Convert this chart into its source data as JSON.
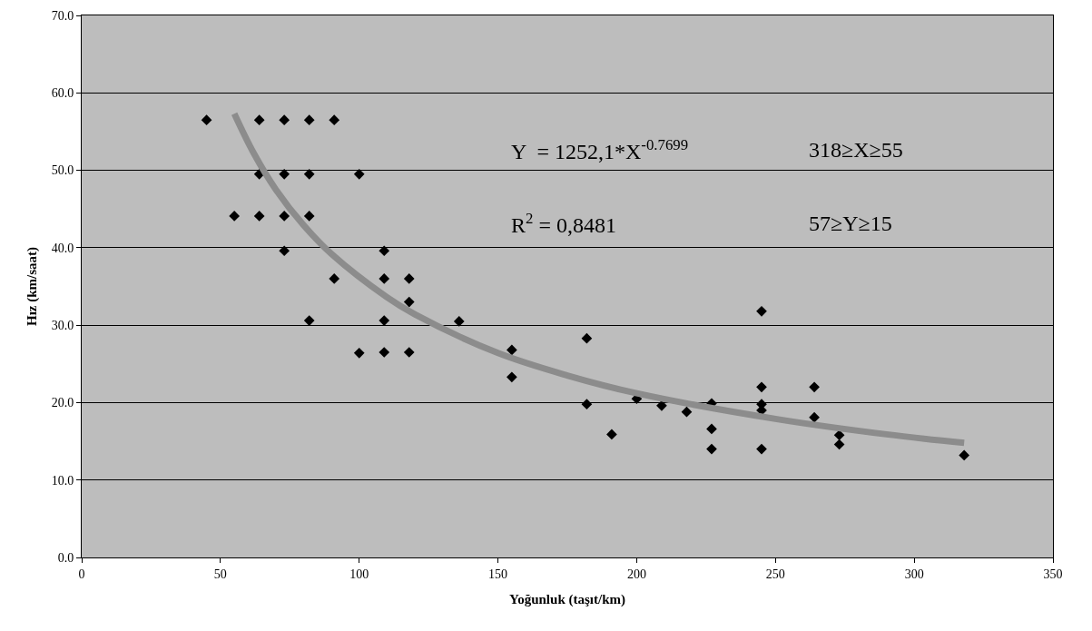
{
  "chart_data": {
    "type": "scatter",
    "xlabel": "Yoğunluk (taşıt/km)",
    "ylabel": "Hız (km/saat)",
    "xlim": [
      0,
      350
    ],
    "xticks": [
      0,
      50,
      100,
      150,
      200,
      250,
      300,
      350
    ],
    "ylim": [
      0,
      70
    ],
    "yticks": [
      {
        "value": 0,
        "label": "0.0"
      },
      {
        "value": 10,
        "label": "10.0"
      },
      {
        "value": 20,
        "label": "20.0"
      },
      {
        "value": 30,
        "label": "30.0"
      },
      {
        "value": 40,
        "label": "40.0"
      },
      {
        "value": 50,
        "label": "50.0"
      },
      {
        "value": 60,
        "label": "60.0"
      },
      {
        "value": 70,
        "label": "70.0"
      }
    ],
    "grid": "y",
    "series": [
      {
        "marker": "diamond",
        "color": "#000000",
        "x": [
          45,
          64,
          73,
          82,
          91,
          64,
          73,
          82,
          100,
          55,
          64,
          73,
          82,
          73,
          109,
          91,
          109,
          118,
          118,
          82,
          109,
          136,
          100,
          109,
          118,
          182,
          155,
          155,
          182,
          191,
          200,
          209,
          218,
          227,
          227,
          227,
          245,
          245,
          245,
          245,
          245,
          264,
          264,
          273,
          273,
          318
        ],
        "values": [
          56.5,
          56.5,
          56.5,
          56.5,
          56.5,
          49.5,
          49.5,
          49.5,
          49.5,
          44.1,
          44.1,
          44.1,
          44.1,
          39.6,
          39.6,
          36.0,
          36.0,
          36.0,
          33.0,
          30.6,
          30.6,
          30.5,
          26.4,
          26.5,
          26.5,
          28.3,
          26.8,
          23.3,
          19.8,
          15.9,
          20.5,
          19.6,
          18.8,
          19.9,
          16.6,
          14.0,
          31.8,
          22.0,
          19.8,
          19.0,
          14.0,
          22.0,
          18.1,
          15.8,
          14.6,
          13.2
        ]
      },
      {
        "type": "line",
        "marker": "none",
        "color": "#8c8c8c",
        "x": [
          55,
          62,
          70,
          80,
          90,
          110,
          120,
          150,
          175,
          200,
          250,
          290,
          318
        ],
        "values": [
          57.3,
          52.2,
          47.5,
          42.9,
          39.2,
          33.6,
          31.4,
          26.4,
          23.5,
          21.2,
          17.9,
          15.9,
          14.8
        ]
      }
    ],
    "annotations": [
      "Y  = 1252,1*X$^{-0.7699}$",
      "R$^{2}$ = 0,8481",
      "318≥X≥55",
      "57≥Y≥15"
    ]
  }
}
